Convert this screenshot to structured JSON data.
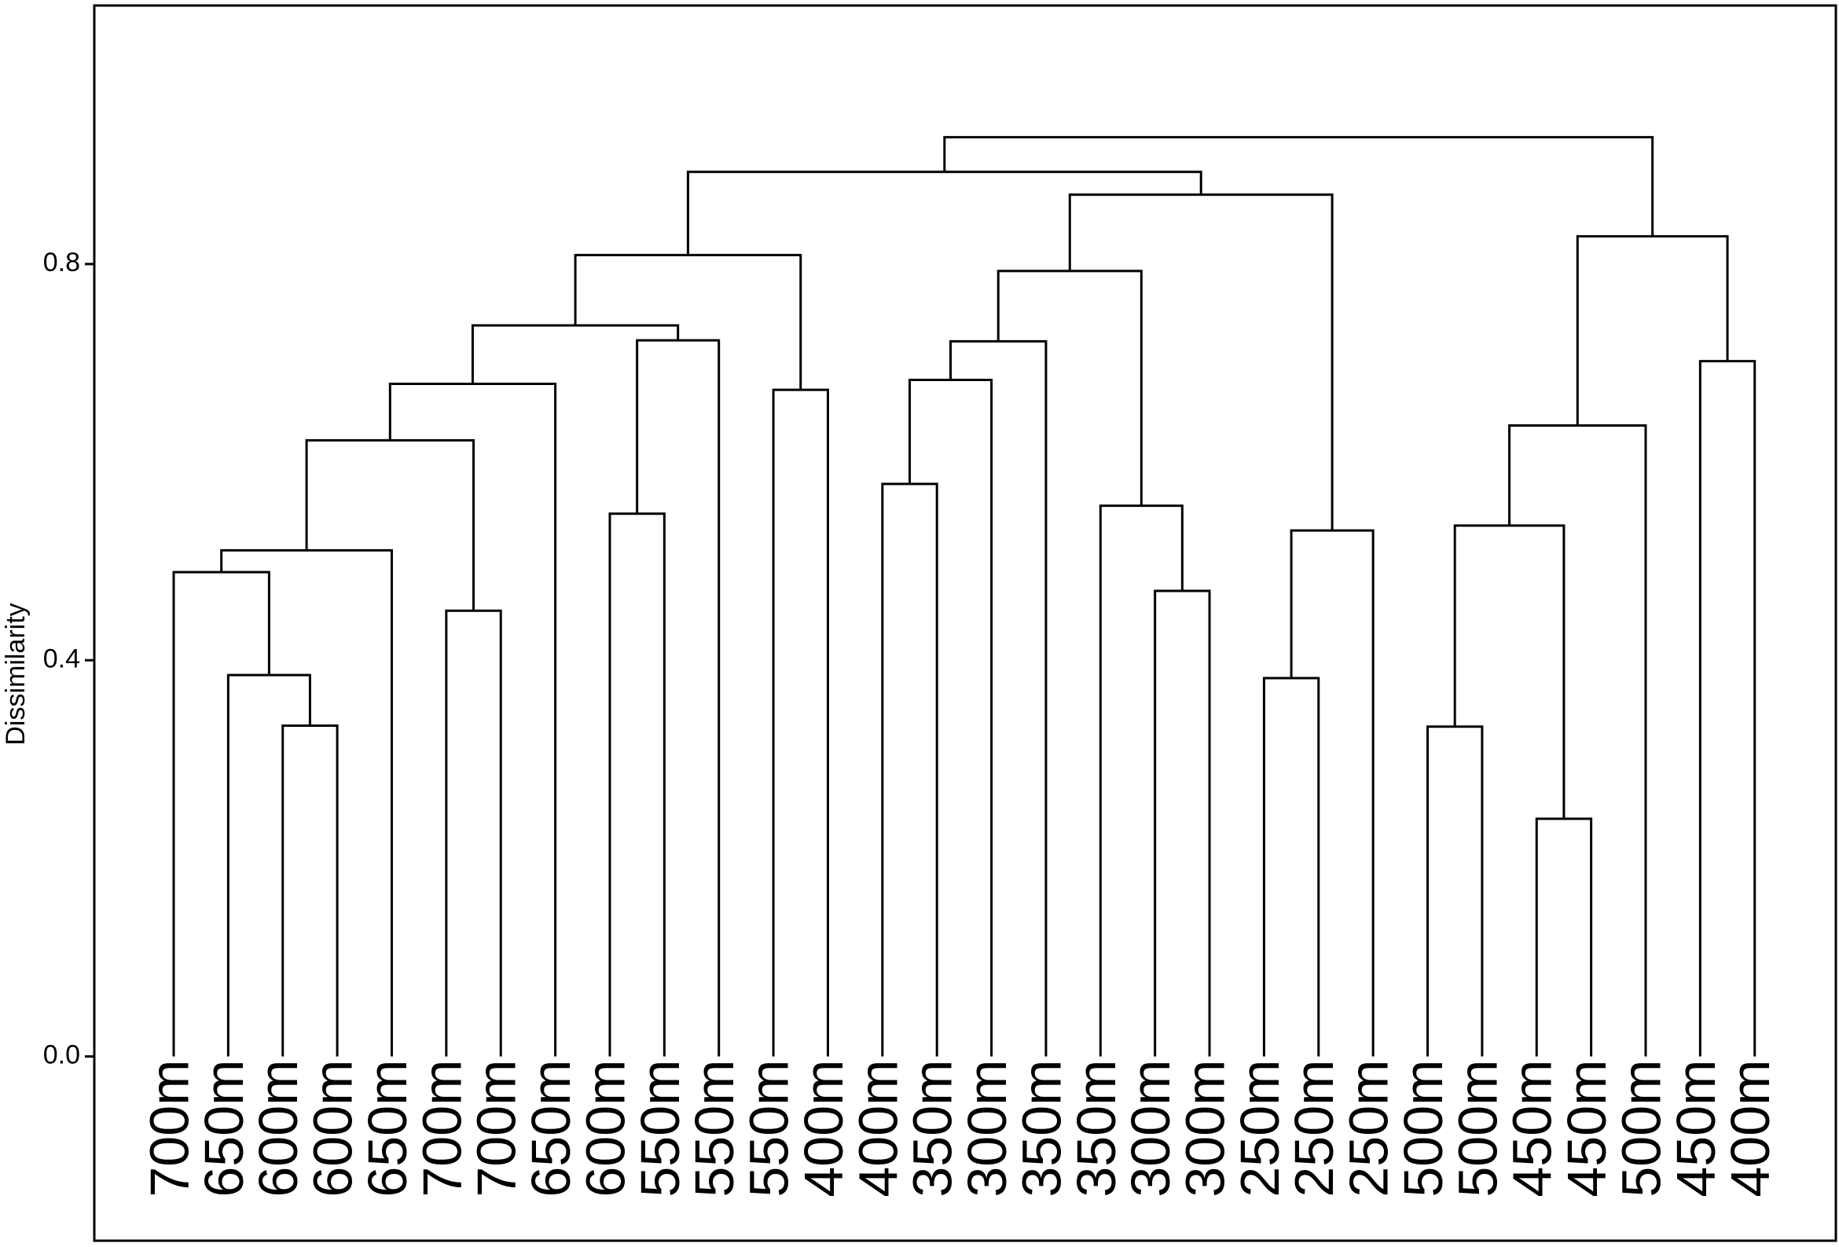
{
  "chart_data": {
    "type": "dendrogram",
    "ylabel": "Dissimilarity",
    "ylim": [
      -0.186,
      1.061
    ],
    "yticks": [
      {
        "value": 0,
        "label": "0.0"
      },
      0.4,
      0.8
    ],
    "leaves": [
      "700m",
      "650m",
      "600m",
      "600m",
      "650m",
      "700m",
      "700m",
      "650m",
      "600m",
      "550m",
      "550m",
      "550m",
      "400m",
      "400m",
      "350m",
      "300m",
      "350m",
      "350m",
      "300m",
      "300m",
      "250m",
      "250m",
      "250m",
      "500m",
      "500m",
      "450m",
      "450m",
      "500m",
      "450m",
      "400m"
    ],
    "merges": [
      {
        "left": 2,
        "right": 3,
        "height": 0.334
      },
      {
        "left": 1,
        "right": 30,
        "height": 0.385
      },
      {
        "left": 0,
        "right": 31,
        "height": 0.489
      },
      {
        "left": 32,
        "right": 4,
        "height": 0.511
      },
      {
        "left": 5,
        "right": 6,
        "height": 0.45
      },
      {
        "left": 33,
        "right": 34,
        "height": 0.622
      },
      {
        "left": 35,
        "right": 7,
        "height": 0.679
      },
      {
        "left": 8,
        "right": 9,
        "height": 0.548
      },
      {
        "left": 37,
        "right": 10,
        "height": 0.723
      },
      {
        "left": 36,
        "right": 38,
        "height": 0.738
      },
      {
        "left": 11,
        "right": 12,
        "height": 0.673
      },
      {
        "left": 39,
        "right": 40,
        "height": 0.809
      },
      {
        "left": 13,
        "right": 14,
        "height": 0.578
      },
      {
        "left": 42,
        "right": 15,
        "height": 0.683
      },
      {
        "left": 43,
        "right": 16,
        "height": 0.722
      },
      {
        "left": 18,
        "right": 19,
        "height": 0.47
      },
      {
        "left": 17,
        "right": 45,
        "height": 0.556
      },
      {
        "left": 44,
        "right": 46,
        "height": 0.793
      },
      {
        "left": 20,
        "right": 21,
        "height": 0.382
      },
      {
        "left": 48,
        "right": 22,
        "height": 0.531
      },
      {
        "left": 47,
        "right": 49,
        "height": 0.87
      },
      {
        "left": 41,
        "right": 50,
        "height": 0.893
      },
      {
        "left": 23,
        "right": 24,
        "height": 0.333
      },
      {
        "left": 25,
        "right": 26,
        "height": 0.24
      },
      {
        "left": 52,
        "right": 53,
        "height": 0.536
      },
      {
        "left": 54,
        "right": 27,
        "height": 0.637
      },
      {
        "left": 28,
        "right": 29,
        "height": 0.702
      },
      {
        "left": 55,
        "right": 56,
        "height": 0.828
      },
      {
        "left": 51,
        "right": 57,
        "height": 0.928
      }
    ]
  }
}
